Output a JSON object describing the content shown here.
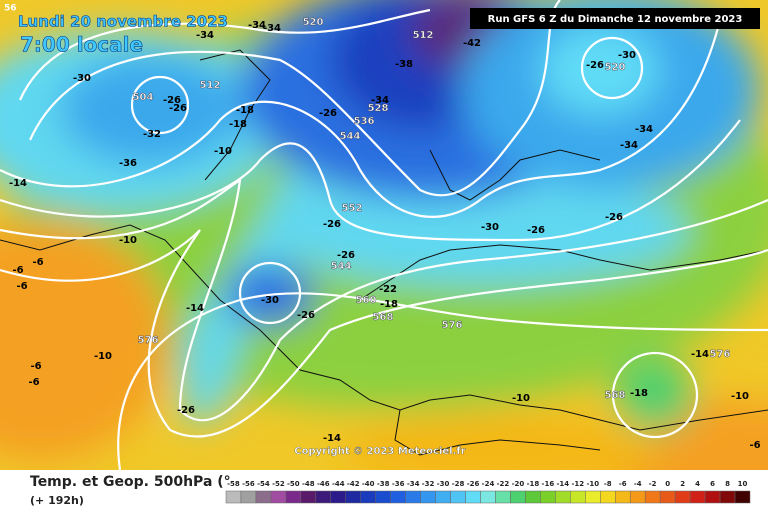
{
  "header": {
    "date": "Lundi 20 novembre 2023",
    "time": "7:00 locale",
    "run": "Run GFS 6 Z du Dimanche 12 novembre 2023",
    "corner": "56"
  },
  "footer": {
    "title": "Temp. et Geop. 500hPa (°",
    "lead": "(+ 192h)",
    "copyright": "Copyright © 2023 Meteociel.fr"
  },
  "legend": {
    "values": [
      -58,
      -56,
      -54,
      -52,
      -50,
      -48,
      -46,
      -44,
      -42,
      -40,
      -38,
      -36,
      -34,
      -32,
      -30,
      -28,
      -26,
      -24,
      -22,
      -20,
      -18,
      -16,
      -14,
      -12,
      -10,
      -8,
      -6,
      -4,
      -2,
      0,
      2,
      4,
      6,
      8,
      10
    ],
    "colors": [
      "#bbbbbb",
      "#a0a0a0",
      "#8c6e8c",
      "#a04ca0",
      "#7a2a8a",
      "#5a1a6a",
      "#3c1a7a",
      "#2a1a8a",
      "#1f2aa0",
      "#1a3cbc",
      "#1a4cd0",
      "#2060e0",
      "#2a7ae8",
      "#3496ee",
      "#40aef0",
      "#50c4f4",
      "#60dcf6",
      "#7ae8e0",
      "#66e0a6",
      "#4cd070",
      "#5cc83a",
      "#7ad028",
      "#a0dc28",
      "#c8e628",
      "#e8ec2a",
      "#f4d820",
      "#f4b818",
      "#f49a18",
      "#f07818",
      "#e85a18",
      "#e03c18",
      "#d02018",
      "#b01010",
      "#800808",
      "#400000"
    ]
  },
  "map_labels": {
    "temperature": [
      -34,
      -34,
      -34,
      -30,
      -26,
      -26,
      -32,
      -36,
      -14,
      -18,
      -18,
      -10,
      -10,
      -6,
      -6,
      -6,
      -26,
      -26,
      -30,
      -26,
      -14,
      -10,
      -6,
      -6,
      -26,
      -14,
      -22,
      -18,
      -10,
      -18,
      -14,
      -10,
      -6,
      -38,
      -42,
      -30,
      -26,
      -34,
      -34,
      -26,
      -26,
      -30,
      -34,
      -26
    ],
    "geopotential": [
      520,
      512,
      520,
      504,
      512,
      528,
      536,
      544,
      552,
      544,
      560,
      568,
      576,
      576,
      568,
      576
    ]
  }
}
